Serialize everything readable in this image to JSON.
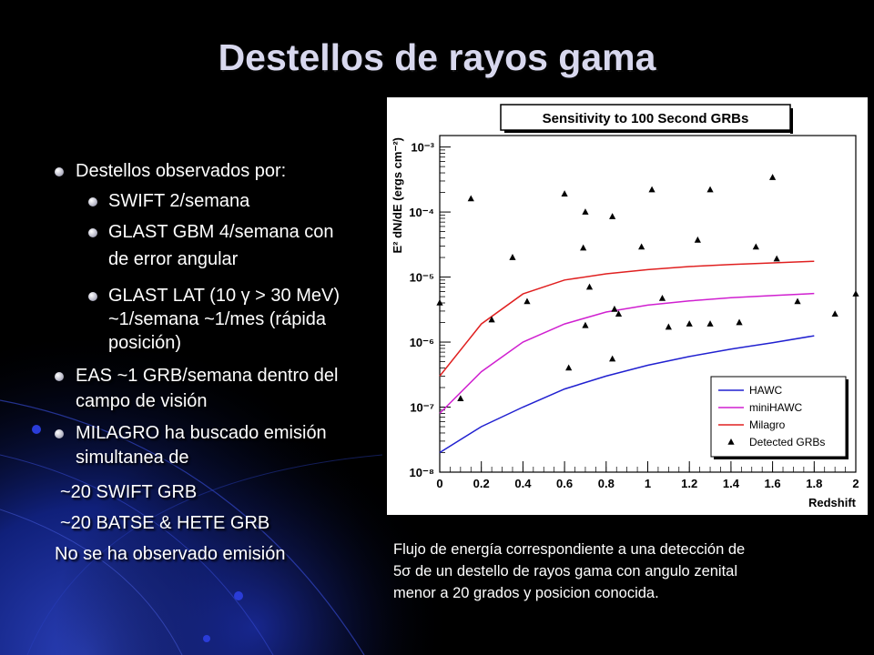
{
  "slide": {
    "title": "Destellos de rayos gama",
    "bullets": [
      {
        "level": 1,
        "lines": [
          "Destellos observados por:"
        ]
      },
      {
        "level": 2,
        "lines": [
          "SWIFT 2/semana"
        ]
      },
      {
        "level": 2,
        "lines": [
          "GLAST GBM 4/semana con",
          "de error angular"
        ]
      },
      {
        "level": 2,
        "lines": [
          "GLAST LAT  (10 γ > 30 MeV)",
          "~1/semana  ~1/mes (rápida",
          "posición)"
        ]
      },
      {
        "level": 1,
        "lines": [
          "EAS ~1 GRB/semana dentro del",
          "campo de visión"
        ]
      },
      {
        "level": 1,
        "lines": [
          "MILAGRO ha buscado emisión",
          "simultanea de"
        ]
      }
    ],
    "plain_lines": [
      "~20 SWIFT GRB",
      "~20 BATSE & HETE GRB",
      "No se ha observado emisión"
    ],
    "caption": [
      "Flujo de energía correspondiente a una detección de",
      "5σ de un destello de rayos gama con angulo zenital",
      "menor a 20 grados y posicion conocida."
    ]
  },
  "chart_data": {
    "type": "line",
    "title": "Sensitivity to 100 Second GRBs",
    "xlabel": "Redshift",
    "ylabel": "E² dN/dE (ergs cm⁻²)",
    "x_ticks": [
      "0",
      "0.2",
      "0.4",
      "0.6",
      "0.8",
      "1",
      "1.2",
      "1.4",
      "1.6",
      "1.8",
      "2"
    ],
    "y_ticks": [
      "10⁻⁸",
      "10⁻⁷",
      "10⁻⁶",
      "10⁻⁵",
      "10⁻⁴",
      "10⁻³"
    ],
    "xlim": [
      0,
      2
    ],
    "ylim": [
      1e-08,
      0.0015
    ],
    "y_scale": "log",
    "legend_position": "bottom-right",
    "series": [
      {
        "name": "HAWC",
        "color": "#2020d0",
        "x": [
          0,
          0.2,
          0.4,
          0.6,
          0.8,
          1.0,
          1.2,
          1.4,
          1.6,
          1.8
        ],
        "y": [
          2e-08,
          5e-08,
          1e-07,
          1.9e-07,
          3e-07,
          4.4e-07,
          6e-07,
          7.8e-07,
          9.8e-07,
          1.25e-06
        ]
      },
      {
        "name": "miniHAWC",
        "color": "#d020d0",
        "x": [
          0,
          0.2,
          0.4,
          0.6,
          0.8,
          1.0,
          1.2,
          1.4,
          1.6,
          1.8
        ],
        "y": [
          8e-08,
          3.5e-07,
          1e-06,
          1.9e-06,
          2.9e-06,
          3.7e-06,
          4.3e-06,
          4.8e-06,
          5.2e-06,
          5.6e-06
        ]
      },
      {
        "name": "Milagro",
        "color": "#e02020",
        "x": [
          0,
          0.2,
          0.4,
          0.6,
          0.8,
          1.0,
          1.2,
          1.4,
          1.6,
          1.8
        ],
        "y": [
          3e-07,
          1.9e-06,
          5.5e-06,
          9e-06,
          1.12e-05,
          1.3e-05,
          1.45e-05,
          1.56e-05,
          1.65e-05,
          1.75e-05
        ]
      },
      {
        "name": "Detected GRBs",
        "marker": "triangle",
        "color": "#000000",
        "x": [
          0,
          0.1,
          0.15,
          0.25,
          0.35,
          0.42,
          0.6,
          0.62,
          0.69,
          0.7,
          0.7,
          0.72,
          0.83,
          0.84,
          0.86,
          0.83,
          0.97,
          1.02,
          1.07,
          1.1,
          1.2,
          1.24,
          1.3,
          1.3,
          1.44,
          1.52,
          1.6,
          1.62,
          1.72,
          1.9,
          2.0
        ],
        "y": [
          4e-06,
          1.35e-07,
          0.00016,
          2.2e-06,
          2e-05,
          4.2e-06,
          0.00019,
          4e-07,
          2.8e-05,
          1.8e-06,
          0.0001,
          7e-06,
          8.5e-05,
          3.2e-06,
          2.7e-06,
          5.5e-07,
          2.9e-05,
          0.00022,
          4.7e-06,
          1.7e-06,
          1.9e-06,
          3.7e-05,
          1.9e-06,
          0.00022,
          2e-06,
          2.9e-05,
          0.00034,
          1.9e-05,
          4.2e-06,
          2.7e-06,
          5.5e-06
        ]
      }
    ]
  }
}
